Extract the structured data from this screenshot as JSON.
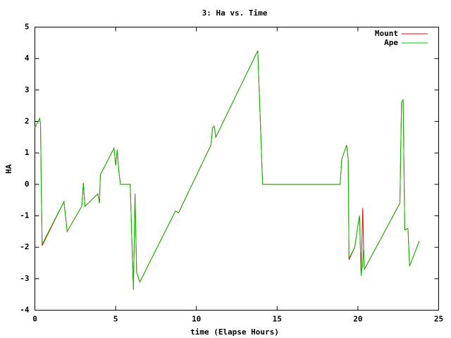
{
  "chart_data": {
    "type": "line",
    "title": "3: Ha vs. Time",
    "xlabel": "time (Elapse Hours)",
    "ylabel": "HA",
    "x": [
      0,
      0.3,
      0.35,
      0.4,
      0.45,
      1.8,
      2.0,
      2.9,
      3.0,
      3.1,
      3.9,
      4.0,
      4.05,
      4.9,
      5.0,
      5.1,
      5.2,
      5.3,
      5.9,
      6.1,
      6.2,
      6.3,
      6.5,
      8.7,
      8.9,
      10.9,
      11.0,
      11.1,
      11.2,
      13.8,
      14.1,
      18.9,
      19.0,
      19.3,
      19.4,
      19.45,
      19.8,
      20.0,
      20.1,
      20.2,
      20.3,
      20.35,
      20.4,
      22.6,
      22.7,
      22.8,
      22.9,
      23.1,
      23.2,
      23.8
    ],
    "series": [
      {
        "name": "Mount",
        "color": "#ff0000",
        "values": [
          1.8,
          2.1,
          1.9,
          -0.2,
          -1.95,
          -0.55,
          -1.5,
          -0.7,
          0.05,
          -0.7,
          -0.3,
          -0.6,
          0.3,
          1.15,
          0.6,
          1.1,
          0.4,
          0,
          0,
          -3.35,
          -0.3,
          -2.8,
          -3.1,
          -0.85,
          -0.9,
          1.25,
          1.8,
          1.85,
          1.5,
          4.25,
          0,
          0,
          0.8,
          1.25,
          0.8,
          -2.4,
          -2.0,
          -1.3,
          -1.0,
          -2.9,
          -0.75,
          -2.0,
          -2.7,
          -0.6,
          2.6,
          2.7,
          -1.45,
          -1.4,
          -2.6,
          -1.8
        ]
      },
      {
        "name": "Ape",
        "color": "#00c000",
        "values": [
          1.8,
          2.1,
          1.9,
          -0.2,
          -1.9,
          -0.55,
          -1.5,
          -0.7,
          0,
          -0.7,
          -0.3,
          -0.6,
          0.3,
          1.15,
          0.6,
          1.1,
          0.4,
          0,
          0,
          -3.35,
          -0.3,
          -2.8,
          -3.1,
          -0.85,
          -0.9,
          1.25,
          1.8,
          1.85,
          1.5,
          4.25,
          0,
          0,
          0.8,
          1.25,
          0.8,
          -2.35,
          -2.0,
          -1.3,
          -1.0,
          -2.9,
          -2.5,
          -2.0,
          -2.7,
          -0.6,
          2.6,
          2.7,
          -1.45,
          -1.4,
          -2.6,
          -1.8
        ]
      }
    ],
    "xlim": [
      0,
      25
    ],
    "xticks": [
      0,
      5,
      10,
      15,
      20,
      25
    ],
    "ylim": [
      -4,
      5
    ],
    "yticks": [
      -4,
      -3,
      -2,
      -1,
      0,
      1,
      2,
      3,
      4,
      5
    ],
    "grid": false,
    "legend": "top-right"
  }
}
